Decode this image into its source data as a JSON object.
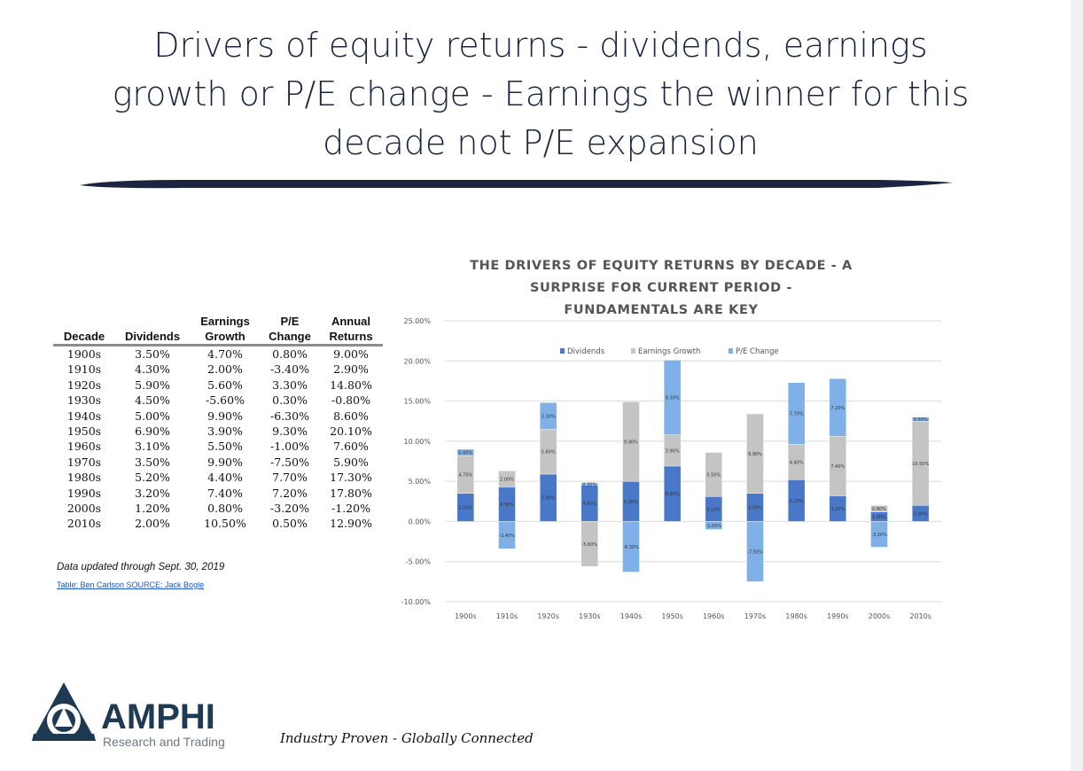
{
  "slide": {
    "title_lines": [
      "Drivers of equity returns - dividends, earnings",
      "growth or P/E change - Earnings the winner for this",
      "decade not P/E expansion"
    ],
    "note": "Data updated through Sept. 30, 2019",
    "source": "Table: Ben Carlson  SOURCE: Jack Bogle",
    "tagline": "Industry Proven - Globally Connected"
  },
  "logo": {
    "name": "AMPHI",
    "subtitle": "Research and Trading",
    "color": "#1d3a52"
  },
  "table": {
    "headers_top": [
      "",
      "",
      "Earnings",
      "P/E",
      "Annual"
    ],
    "headers_bottom": [
      "Decade",
      "Dividends",
      "Growth",
      "Change",
      "Returns"
    ],
    "rows": [
      [
        "1900s",
        "3.50%",
        "4.70%",
        "0.80%",
        "9.00%"
      ],
      [
        "1910s",
        "4.30%",
        "2.00%",
        "-3.40%",
        "2.90%"
      ],
      [
        "1920s",
        "5.90%",
        "5.60%",
        "3.30%",
        "14.80%"
      ],
      [
        "1930s",
        "4.50%",
        "-5.60%",
        "0.30%",
        "-0.80%"
      ],
      [
        "1940s",
        "5.00%",
        "9.90%",
        "-6.30%",
        "8.60%"
      ],
      [
        "1950s",
        "6.90%",
        "3.90%",
        "9.30%",
        "20.10%"
      ],
      [
        "1960s",
        "3.10%",
        "5.50%",
        "-1.00%",
        "7.60%"
      ],
      [
        "1970s",
        "3.50%",
        "9.90%",
        "-7.50%",
        "5.90%"
      ],
      [
        "1980s",
        "5.20%",
        "4.40%",
        "7.70%",
        "17.30%"
      ],
      [
        "1990s",
        "3.20%",
        "7.40%",
        "7.20%",
        "17.80%"
      ],
      [
        "2000s",
        "1.20%",
        "0.80%",
        "-3.20%",
        "-1.20%"
      ],
      [
        "2010s",
        "2.00%",
        "10.50%",
        "0.50%",
        "12.90%"
      ]
    ]
  },
  "chart_data": {
    "type": "bar",
    "stacked": true,
    "title_lines": [
      "THE DRIVERS OF EQUITY RETURNS BY DECADE - A",
      "SURPRISE FOR CURRENT PERIOD -",
      "FUNDAMENTALS ARE KEY"
    ],
    "categories": [
      "1900s",
      "1910s",
      "1920s",
      "1930s",
      "1940s",
      "1950s",
      "1960s",
      "1970s",
      "1980s",
      "1990s",
      "2000s",
      "2010s"
    ],
    "series": [
      {
        "name": "Dividends",
        "color": "#4a78c8",
        "values": [
          3.5,
          4.3,
          5.9,
          4.5,
          5.0,
          6.9,
          3.1,
          3.5,
          5.2,
          3.2,
          1.2,
          2.0
        ]
      },
      {
        "name": "Earnings Growth",
        "color": "#c4c4c4",
        "values": [
          4.7,
          2.0,
          5.6,
          -5.6,
          9.9,
          3.9,
          5.5,
          9.9,
          4.4,
          7.4,
          0.8,
          10.5
        ]
      },
      {
        "name": "P/E Change",
        "color": "#7fb0e8",
        "values": [
          0.8,
          -3.4,
          3.3,
          0.3,
          -6.3,
          9.3,
          -1.0,
          -7.5,
          7.7,
          7.2,
          -3.2,
          0.5
        ]
      }
    ],
    "ylim": [
      -10,
      25
    ],
    "yticks": [
      -10,
      -5,
      0,
      5,
      10,
      15,
      20,
      25
    ],
    "grid": true,
    "legend_position": "top"
  }
}
